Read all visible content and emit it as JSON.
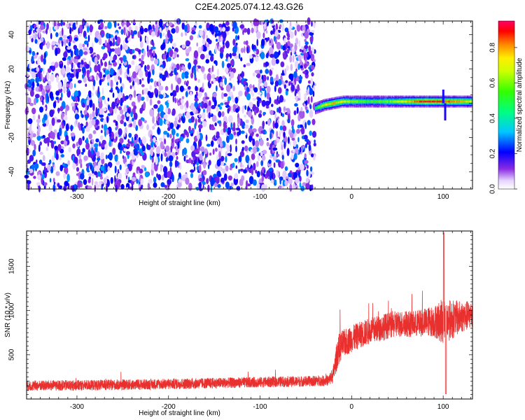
{
  "title": "C2E4.2025.074.12.43.G26",
  "chart_data": [
    {
      "type": "heatmap",
      "xlabel": "Height of straight line (km)",
      "ylabel": "Frequency (Hz)",
      "xlim": [
        -355,
        132
      ],
      "ylim": [
        -50,
        48
      ],
      "x_ticks": [
        -300,
        -200,
        -100,
        0,
        100
      ],
      "y_ticks": [
        -40,
        -20,
        0,
        20,
        40
      ],
      "colorbar": {
        "label": "Normalized spectral amplitude",
        "range": [
          0,
          0.95
        ],
        "ticks": [
          0.0,
          0.2,
          0.4,
          0.6,
          0.8
        ],
        "colormap": "rainbow"
      },
      "regions": [
        {
          "x": [
            -355,
            -40
          ],
          "y": [
            -50,
            48
          ],
          "amplitude": "low broadband noise (0.05-0.3)"
        },
        {
          "x": [
            -40,
            132
          ],
          "y": [
            -3,
            3
          ],
          "amplitude": "tone near 1 Hz, 0.4-0.95"
        }
      ],
      "tone_track": {
        "x": [
          -40,
          -30,
          -20,
          -10,
          0,
          20,
          40,
          60,
          80,
          100,
          120,
          132
        ],
        "freq": [
          -3,
          -1,
          0,
          1,
          1,
          1,
          1,
          1,
          1,
          1,
          1,
          1
        ],
        "amplitude": [
          0.5,
          0.7,
          0.8,
          0.7,
          0.6,
          0.55,
          0.6,
          0.75,
          0.9,
          0.85,
          0.8,
          0.7
        ]
      }
    },
    {
      "type": "line",
      "xlabel": "Height of straight line (km)",
      "ylabel": "SNR (10 * v/v)",
      "xlim": [
        -355,
        132
      ],
      "ylim": [
        0,
        1900
      ],
      "x_ticks": [
        -300,
        -200,
        -100,
        0,
        100
      ],
      "y_ticks": [
        500,
        1000,
        1500
      ],
      "series": [
        {
          "color": "#e8312f",
          "x": [
            -355,
            -300,
            -250,
            -200,
            -150,
            -100,
            -50,
            -25,
            -20,
            -15,
            -10,
            0,
            10,
            20,
            30,
            40,
            50,
            60,
            70,
            80,
            90,
            100,
            110,
            120,
            132
          ],
          "mean": [
            150,
            155,
            160,
            170,
            180,
            190,
            200,
            210,
            280,
            550,
            620,
            680,
            730,
            770,
            800,
            830,
            850,
            850,
            850,
            870,
            880,
            880,
            900,
            930,
            950
          ],
          "noise": [
            60,
            60,
            60,
            60,
            60,
            60,
            60,
            60,
            100,
            180,
            160,
            150,
            150,
            150,
            150,
            150,
            150,
            150,
            150,
            160,
            180,
            260,
            220,
            180,
            160
          ]
        }
      ]
    }
  ]
}
